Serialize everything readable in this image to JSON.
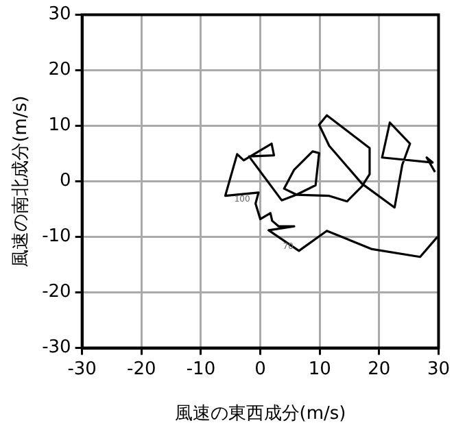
{
  "chart_data": {
    "type": "line",
    "xlabel": "風速の東西成分(m/s)",
    "ylabel": "風速の南北成分(m/s)",
    "x": [
      29.8,
      26.9,
      18.8,
      11.2,
      6.5,
      1.4,
      5.7,
      3.1,
      2.0,
      1.7,
      0,
      -0.8,
      -0.3,
      -5.9,
      -3.9,
      -2.8,
      1.9,
      2.3,
      -1.9,
      3.6,
      6.1,
      4.0,
      5.7,
      8.8,
      9.9,
      9.3,
      6.1,
      11.6,
      14.6,
      17.1,
      18.4,
      18.4,
      11.2,
      9.9,
      11.6,
      17.1,
      22.6,
      23.9,
      25.2,
      21.8,
      20.5,
      29.0,
      28.0,
      29.4
    ],
    "series": [
      {
        "color": "#000000",
        "values": [
          -10.0,
          -13.6,
          -12.2,
          -8.9,
          -12.5,
          -8.8,
          -8.1,
          -8.1,
          -7.1,
          -5.7,
          -6.8,
          -4.0,
          -2.0,
          -2.6,
          4.9,
          3.8,
          6.8,
          4.7,
          4.5,
          -3.4,
          -2.4,
          -1.3,
          2.1,
          5.4,
          5.1,
          -0.7,
          -2.4,
          -2.6,
          -3.6,
          -0.9,
          1.3,
          6.0,
          11.9,
          10.2,
          6.4,
          -0.4,
          -4.7,
          3.0,
          6.8,
          10.6,
          4.3,
          3.4,
          4.3,
          1.7
        ]
      }
    ],
    "xlim": [
      -30,
      30
    ],
    "ylim": [
      -30,
      30
    ],
    "xticks": [
      -30,
      -20,
      -10,
      0,
      10,
      20,
      30
    ],
    "yticks": [
      -30,
      -20,
      -10,
      0,
      10,
      20,
      30
    ],
    "grid": true,
    "legend": false,
    "marker": "none",
    "line_style": "solid",
    "annotations": [
      {
        "text": "100",
        "x": -0.8,
        "y": -4.0
      },
      {
        "text": "70",
        "x": 6.5,
        "y": -12.5
      }
    ]
  }
}
